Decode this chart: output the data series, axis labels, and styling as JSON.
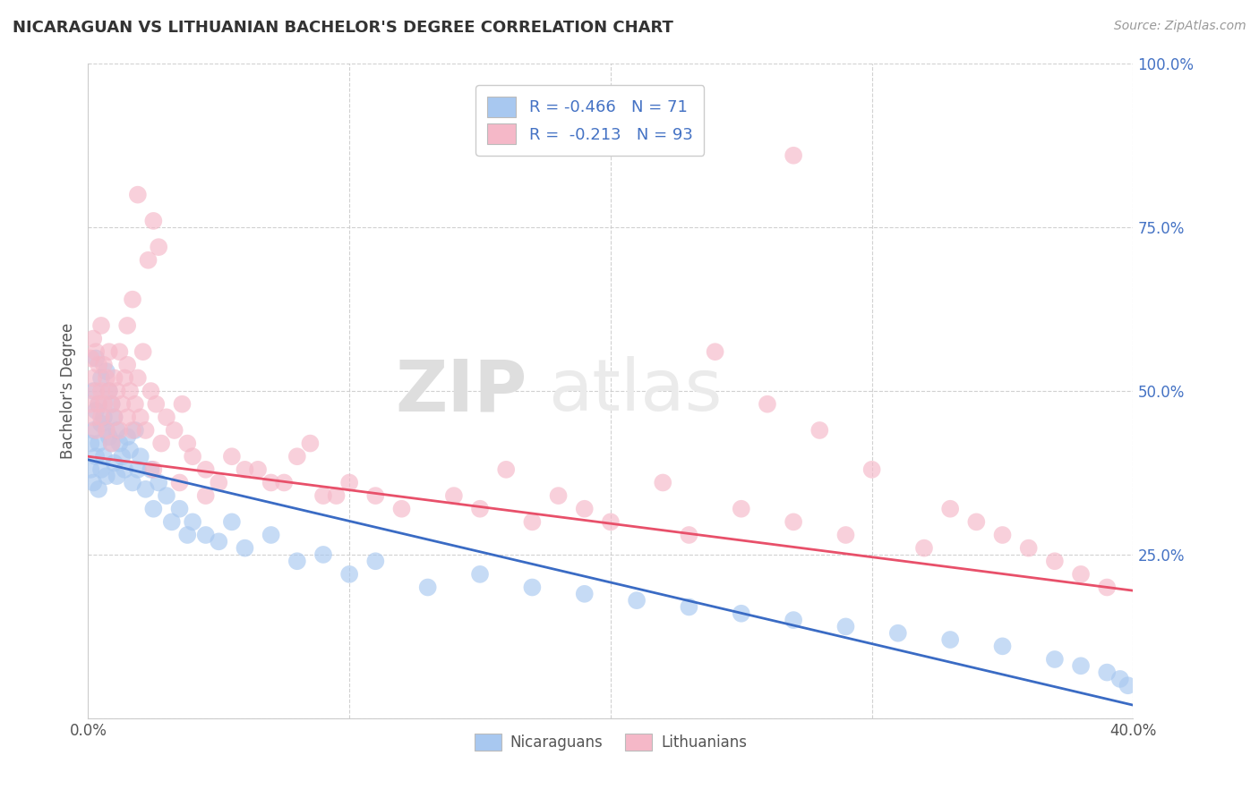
{
  "title": "NICARAGUAN VS LITHUANIAN BACHELOR'S DEGREE CORRELATION CHART",
  "source": "Source: ZipAtlas.com",
  "ylabel": "Bachelor's Degree",
  "xlim": [
    0.0,
    0.4
  ],
  "ylim": [
    0.0,
    1.0
  ],
  "xticks": [
    0.0,
    0.1,
    0.2,
    0.3,
    0.4
  ],
  "xtick_labels": [
    "0.0%",
    "",
    "",
    "",
    "40.0%"
  ],
  "yticks": [
    0.0,
    0.25,
    0.5,
    0.75,
    1.0
  ],
  "ytick_labels": [
    "",
    "25.0%",
    "50.0%",
    "75.0%",
    "100.0%"
  ],
  "blue_R": -0.466,
  "blue_N": 71,
  "pink_R": -0.213,
  "pink_N": 93,
  "blue_color": "#A8C8F0",
  "pink_color": "#F5B8C8",
  "blue_line_color": "#3A6BC4",
  "pink_line_color": "#E8506A",
  "watermark_zip": "ZIP",
  "watermark_atlas": "atlas",
  "legend_label_blue": "Nicaraguans",
  "legend_label_pink": "Lithuanians",
  "blue_trend_start": 0.4,
  "blue_trend_end": 0.02,
  "pink_trend_start": 0.4,
  "pink_trend_end": 0.2,
  "blue_scatter_x": [
    0.001,
    0.001,
    0.002,
    0.002,
    0.002,
    0.003,
    0.003,
    0.003,
    0.004,
    0.004,
    0.004,
    0.005,
    0.005,
    0.005,
    0.006,
    0.006,
    0.007,
    0.007,
    0.007,
    0.008,
    0.008,
    0.009,
    0.009,
    0.01,
    0.01,
    0.011,
    0.011,
    0.012,
    0.013,
    0.014,
    0.015,
    0.016,
    0.017,
    0.018,
    0.019,
    0.02,
    0.022,
    0.024,
    0.025,
    0.027,
    0.03,
    0.032,
    0.035,
    0.038,
    0.04,
    0.045,
    0.05,
    0.055,
    0.06,
    0.07,
    0.08,
    0.09,
    0.1,
    0.11,
    0.13,
    0.15,
    0.17,
    0.19,
    0.21,
    0.23,
    0.25,
    0.27,
    0.29,
    0.31,
    0.33,
    0.35,
    0.37,
    0.38,
    0.39,
    0.395,
    0.398
  ],
  "blue_scatter_y": [
    0.42,
    0.38,
    0.5,
    0.44,
    0.36,
    0.55,
    0.47,
    0.4,
    0.48,
    0.42,
    0.35,
    0.52,
    0.45,
    0.38,
    0.46,
    0.4,
    0.53,
    0.44,
    0.37,
    0.5,
    0.43,
    0.48,
    0.42,
    0.46,
    0.39,
    0.44,
    0.37,
    0.42,
    0.4,
    0.38,
    0.43,
    0.41,
    0.36,
    0.44,
    0.38,
    0.4,
    0.35,
    0.38,
    0.32,
    0.36,
    0.34,
    0.3,
    0.32,
    0.28,
    0.3,
    0.28,
    0.27,
    0.3,
    0.26,
    0.28,
    0.24,
    0.25,
    0.22,
    0.24,
    0.2,
    0.22,
    0.2,
    0.19,
    0.18,
    0.17,
    0.16,
    0.15,
    0.14,
    0.13,
    0.12,
    0.11,
    0.09,
    0.08,
    0.07,
    0.06,
    0.05
  ],
  "pink_scatter_x": [
    0.001,
    0.001,
    0.002,
    0.002,
    0.002,
    0.003,
    0.003,
    0.003,
    0.004,
    0.004,
    0.005,
    0.005,
    0.005,
    0.006,
    0.006,
    0.007,
    0.007,
    0.008,
    0.008,
    0.009,
    0.009,
    0.01,
    0.01,
    0.011,
    0.012,
    0.012,
    0.013,
    0.014,
    0.015,
    0.015,
    0.016,
    0.017,
    0.018,
    0.019,
    0.02,
    0.022,
    0.024,
    0.026,
    0.028,
    0.03,
    0.033,
    0.036,
    0.038,
    0.04,
    0.045,
    0.05,
    0.06,
    0.07,
    0.08,
    0.09,
    0.1,
    0.11,
    0.12,
    0.14,
    0.15,
    0.16,
    0.17,
    0.18,
    0.19,
    0.2,
    0.22,
    0.23,
    0.25,
    0.27,
    0.29,
    0.3,
    0.32,
    0.33,
    0.34,
    0.35,
    0.36,
    0.37,
    0.38,
    0.39,
    0.24,
    0.26,
    0.28,
    0.27,
    0.025,
    0.035,
    0.045,
    0.055,
    0.065,
    0.075,
    0.085,
    0.095,
    0.015,
    0.017,
    0.019,
    0.021,
    0.023,
    0.025,
    0.027
  ],
  "pink_scatter_y": [
    0.48,
    0.55,
    0.52,
    0.46,
    0.58,
    0.5,
    0.44,
    0.56,
    0.48,
    0.54,
    0.5,
    0.46,
    0.6,
    0.48,
    0.54,
    0.52,
    0.44,
    0.5,
    0.56,
    0.48,
    0.42,
    0.52,
    0.46,
    0.5,
    0.44,
    0.56,
    0.48,
    0.52,
    0.46,
    0.54,
    0.5,
    0.44,
    0.48,
    0.52,
    0.46,
    0.44,
    0.5,
    0.48,
    0.42,
    0.46,
    0.44,
    0.48,
    0.42,
    0.4,
    0.38,
    0.36,
    0.38,
    0.36,
    0.4,
    0.34,
    0.36,
    0.34,
    0.32,
    0.34,
    0.32,
    0.38,
    0.3,
    0.34,
    0.32,
    0.3,
    0.36,
    0.28,
    0.32,
    0.3,
    0.28,
    0.38,
    0.26,
    0.32,
    0.3,
    0.28,
    0.26,
    0.24,
    0.22,
    0.2,
    0.56,
    0.48,
    0.44,
    0.86,
    0.38,
    0.36,
    0.34,
    0.4,
    0.38,
    0.36,
    0.42,
    0.34,
    0.6,
    0.64,
    0.8,
    0.56,
    0.7,
    0.76,
    0.72
  ]
}
